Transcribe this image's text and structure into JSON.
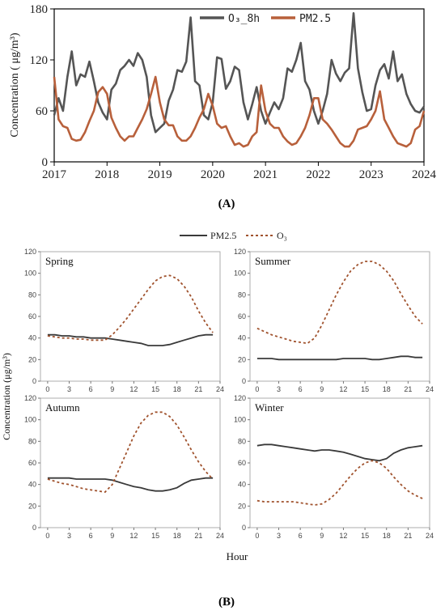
{
  "colors": {
    "o3": "#555555",
    "pm25": "#b8603b",
    "o3_hourly": "#a0522d",
    "pm25_hourly": "#3a3a3a"
  },
  "chart_data": [
    {
      "type": "line",
      "caption": "(A)",
      "ylabel": "Concentration ( μg/m³)",
      "x_ticks": [
        "2017",
        "2018",
        "2019",
        "2020",
        "2021",
        "2022",
        "2023",
        "2024"
      ],
      "y_ticks": [
        "0",
        "60",
        "120",
        "180"
      ],
      "ylim": [
        0,
        180
      ],
      "xlim": [
        2017,
        2024
      ],
      "legend_position": "top-right",
      "series": [
        {
          "name": "O₃_8h",
          "color": "#555555",
          "x": [
            2017.0,
            2017.083,
            2017.167,
            2017.25,
            2017.333,
            2017.417,
            2017.5,
            2017.583,
            2017.667,
            2017.75,
            2017.833,
            2017.917,
            2018.0,
            2018.083,
            2018.167,
            2018.25,
            2018.333,
            2018.417,
            2018.5,
            2018.583,
            2018.667,
            2018.75,
            2018.833,
            2018.917,
            2019.0,
            2019.083,
            2019.167,
            2019.25,
            2019.333,
            2019.417,
            2019.5,
            2019.583,
            2019.667,
            2019.75,
            2019.833,
            2019.917,
            2020.0,
            2020.083,
            2020.167,
            2020.25,
            2020.333,
            2020.417,
            2020.5,
            2020.583,
            2020.667,
            2020.75,
            2020.833,
            2020.917,
            2021.0,
            2021.083,
            2021.167,
            2021.25,
            2021.333,
            2021.417,
            2021.5,
            2021.583,
            2021.667,
            2021.75,
            2021.833,
            2021.917,
            2022.0,
            2022.083,
            2022.167,
            2022.25,
            2022.333,
            2022.417,
            2022.5,
            2022.583,
            2022.667,
            2022.75,
            2022.833,
            2022.917,
            2023.0,
            2023.083,
            2023.167,
            2023.25,
            2023.333,
            2023.417,
            2023.5,
            2023.583,
            2023.667,
            2023.75,
            2023.833,
            2023.917,
            2024.0
          ],
          "y": [
            55,
            75,
            60,
            100,
            130,
            90,
            103,
            100,
            118,
            95,
            70,
            58,
            50,
            85,
            92,
            108,
            113,
            120,
            113,
            128,
            120,
            100,
            55,
            35,
            40,
            45,
            72,
            85,
            108,
            106,
            118,
            170,
            95,
            90,
            55,
            50,
            70,
            123,
            121,
            86,
            95,
            112,
            108,
            70,
            50,
            68,
            88,
            60,
            45,
            58,
            70,
            62,
            75,
            110,
            106,
            120,
            140,
            95,
            85,
            60,
            45,
            60,
            80,
            120,
            104,
            95,
            105,
            110,
            175,
            110,
            82,
            60,
            62,
            90,
            108,
            115,
            98,
            130,
            95,
            103,
            80,
            68,
            60,
            58,
            65
          ]
        },
        {
          "name": "PM2.5",
          "color": "#b8603b",
          "x": [
            2017.0,
            2017.083,
            2017.167,
            2017.25,
            2017.333,
            2017.417,
            2017.5,
            2017.583,
            2017.667,
            2017.75,
            2017.833,
            2017.917,
            2018.0,
            2018.083,
            2018.167,
            2018.25,
            2018.333,
            2018.417,
            2018.5,
            2018.583,
            2018.667,
            2018.75,
            2018.833,
            2018.917,
            2019.0,
            2019.083,
            2019.167,
            2019.25,
            2019.333,
            2019.417,
            2019.5,
            2019.583,
            2019.667,
            2019.75,
            2019.833,
            2019.917,
            2020.0,
            2020.083,
            2020.167,
            2020.25,
            2020.333,
            2020.417,
            2020.5,
            2020.583,
            2020.667,
            2020.75,
            2020.833,
            2020.917,
            2021.0,
            2021.083,
            2021.167,
            2021.25,
            2021.333,
            2021.417,
            2021.5,
            2021.583,
            2021.667,
            2021.75,
            2021.833,
            2021.917,
            2022.0,
            2022.083,
            2022.167,
            2022.25,
            2022.333,
            2022.417,
            2022.5,
            2022.583,
            2022.667,
            2022.75,
            2022.833,
            2022.917,
            2023.0,
            2023.083,
            2023.167,
            2023.25,
            2023.333,
            2023.417,
            2023.5,
            2023.583,
            2023.667,
            2023.75,
            2023.833,
            2023.917,
            2024.0
          ],
          "y": [
            100,
            50,
            42,
            40,
            27,
            25,
            26,
            35,
            48,
            60,
            82,
            88,
            80,
            52,
            40,
            30,
            25,
            30,
            30,
            40,
            50,
            62,
            80,
            100,
            70,
            50,
            43,
            43,
            30,
            25,
            25,
            30,
            40,
            52,
            62,
            80,
            66,
            45,
            40,
            42,
            30,
            20,
            22,
            18,
            20,
            30,
            35,
            90,
            60,
            45,
            40,
            40,
            30,
            24,
            20,
            22,
            30,
            40,
            55,
            75,
            75,
            50,
            45,
            38,
            30,
            22,
            18,
            18,
            25,
            38,
            40,
            42,
            50,
            60,
            83,
            50,
            40,
            30,
            22,
            20,
            18,
            22,
            38,
            42,
            60
          ]
        }
      ]
    },
    {
      "type": "line",
      "caption": "(B)",
      "ylabel": "Concentration (μg/m³)",
      "xlabel": "Hour",
      "legend_position": "top",
      "x_ticks": [
        "0",
        "3",
        "6",
        "9",
        "12",
        "15",
        "18",
        "21",
        "24"
      ],
      "y_ticks": [
        "0",
        "20",
        "40",
        "60",
        "80",
        "100",
        "120"
      ],
      "xlim": [
        -1,
        24
      ],
      "ylim": [
        0,
        120
      ],
      "legend": [
        "PM2.5",
        "O₃"
      ],
      "panels": [
        {
          "title": "Spring",
          "hours": [
            0,
            1,
            2,
            3,
            4,
            5,
            6,
            7,
            8,
            9,
            10,
            11,
            12,
            13,
            14,
            15,
            16,
            17,
            18,
            19,
            20,
            21,
            22,
            23
          ],
          "pm25": [
            43,
            43,
            42,
            42,
            41,
            41,
            40,
            40,
            40,
            39,
            38,
            37,
            36,
            35,
            33,
            33,
            33,
            34,
            36,
            38,
            40,
            42,
            43,
            43
          ],
          "o3": [
            42,
            41,
            40,
            40,
            39,
            39,
            38,
            38,
            38,
            43,
            50,
            58,
            67,
            76,
            85,
            93,
            97,
            98,
            95,
            88,
            78,
            65,
            54,
            45
          ]
        },
        {
          "title": "Summer",
          "hours": [
            0,
            1,
            2,
            3,
            4,
            5,
            6,
            7,
            8,
            9,
            10,
            11,
            12,
            13,
            14,
            15,
            16,
            17,
            18,
            19,
            20,
            21,
            22,
            23
          ],
          "pm25": [
            21,
            21,
            21,
            20,
            20,
            20,
            20,
            20,
            20,
            20,
            20,
            20,
            21,
            21,
            21,
            21,
            20,
            20,
            21,
            22,
            23,
            23,
            22,
            22
          ],
          "o3": [
            49,
            46,
            43,
            41,
            39,
            37,
            36,
            35,
            40,
            52,
            66,
            80,
            92,
            102,
            108,
            111,
            111,
            108,
            102,
            93,
            81,
            70,
            60,
            53
          ]
        },
        {
          "title": "Autumn",
          "hours": [
            0,
            1,
            2,
            3,
            4,
            5,
            6,
            7,
            8,
            9,
            10,
            11,
            12,
            13,
            14,
            15,
            16,
            17,
            18,
            19,
            20,
            21,
            22,
            23
          ],
          "pm25": [
            46,
            46,
            46,
            46,
            45,
            45,
            45,
            45,
            45,
            44,
            42,
            40,
            38,
            37,
            35,
            34,
            34,
            35,
            37,
            41,
            44,
            45,
            46,
            46
          ],
          "o3": [
            45,
            43,
            41,
            40,
            38,
            36,
            35,
            34,
            33,
            40,
            55,
            70,
            85,
            97,
            104,
            107,
            107,
            103,
            95,
            84,
            72,
            61,
            52,
            45
          ]
        },
        {
          "title": "Winter",
          "hours": [
            0,
            1,
            2,
            3,
            4,
            5,
            6,
            7,
            8,
            9,
            10,
            11,
            12,
            13,
            14,
            15,
            16,
            17,
            18,
            19,
            20,
            21,
            22,
            23
          ],
          "pm25": [
            76,
            77,
            77,
            76,
            75,
            74,
            73,
            72,
            71,
            72,
            72,
            71,
            70,
            68,
            66,
            64,
            63,
            62,
            64,
            69,
            72,
            74,
            75,
            76
          ],
          "o3": [
            25,
            24,
            24,
            24,
            24,
            24,
            23,
            22,
            21,
            22,
            26,
            32,
            40,
            48,
            55,
            60,
            62,
            60,
            55,
            47,
            40,
            34,
            30,
            27
          ]
        }
      ]
    }
  ]
}
